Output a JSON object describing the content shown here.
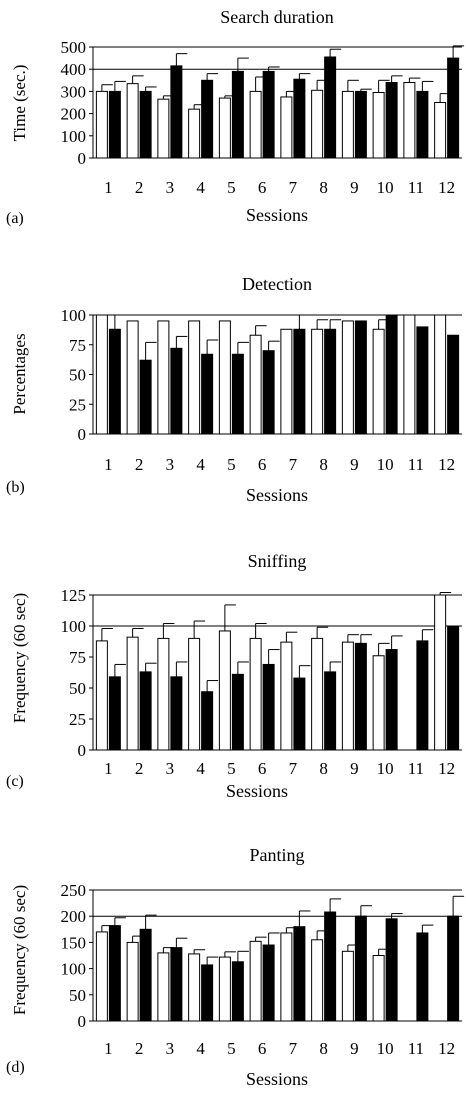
{
  "chart_data": [
    {
      "type": "bar",
      "panel_label": "(a)",
      "title": "Search duration",
      "xlabel": "Sessions",
      "ylabel": "Time (sec.)",
      "ylim": [
        0,
        500
      ],
      "yticks": [
        0,
        100,
        200,
        300,
        400,
        500
      ],
      "gridlines": [
        400,
        500
      ],
      "categories": [
        "1",
        "2",
        "3",
        "4",
        "5",
        "6",
        "7",
        "8",
        "9",
        "10",
        "11",
        "12"
      ],
      "series": [
        {
          "fill": "#ffffff",
          "values": [
            300,
            335,
            265,
            220,
            270,
            300,
            275,
            305,
            300,
            295,
            340,
            250
          ],
          "errors": [
            30,
            35,
            15,
            20,
            10,
            65,
            25,
            45,
            50,
            55,
            20,
            40
          ]
        },
        {
          "fill": "#000000",
          "values": [
            300,
            300,
            415,
            350,
            390,
            390,
            355,
            455,
            300,
            340,
            300,
            450
          ],
          "errors": [
            45,
            20,
            55,
            30,
            60,
            20,
            25,
            35,
            10,
            30,
            45,
            55
          ]
        }
      ]
    },
    {
      "type": "bar",
      "panel_label": "(b)",
      "title": "Detection",
      "xlabel": "Sessions",
      "ylabel": "Percentages",
      "ylim": [
        0,
        100
      ],
      "yticks": [
        0,
        25,
        50,
        75,
        100
      ],
      "gridlines": [
        100
      ],
      "categories": [
        "1",
        "2",
        "3",
        "4",
        "5",
        "6",
        "7",
        "8",
        "9",
        "10",
        "11",
        "12"
      ],
      "series": [
        {
          "fill": "#ffffff",
          "values": [
            100,
            95,
            95,
            95,
            95,
            83,
            88,
            88,
            95,
            88,
            100,
            100
          ],
          "errors": [
            0,
            0,
            0,
            0,
            0,
            8,
            0,
            8,
            0,
            8,
            0,
            0
          ]
        },
        {
          "fill": "#000000",
          "values": [
            88,
            62,
            72,
            67,
            67,
            70,
            88,
            88,
            95,
            100,
            90,
            83
          ],
          "errors": [
            12,
            15,
            10,
            12,
            10,
            8,
            12,
            8,
            0,
            0,
            0,
            0
          ]
        }
      ]
    },
    {
      "type": "bar",
      "panel_label": "(c)",
      "title": "Sniffing",
      "xlabel": "Sessions",
      "ylabel": "Frequency (60 sec)",
      "ylim": [
        0,
        125
      ],
      "yticks": [
        0,
        25,
        50,
        75,
        100,
        125
      ],
      "gridlines": [
        100,
        125
      ],
      "categories": [
        "1",
        "2",
        "3",
        "4",
        "5",
        "6",
        "7",
        "8",
        "9",
        "10",
        "11",
        "12"
      ],
      "series": [
        {
          "fill": "#ffffff",
          "values": [
            88,
            91,
            90,
            90,
            96,
            90,
            87,
            90,
            87,
            76,
            0,
            125
          ],
          "errors": [
            10,
            7,
            12,
            14,
            21,
            12,
            8,
            9,
            6,
            10,
            0,
            2
          ]
        },
        {
          "fill": "#000000",
          "values": [
            59,
            63,
            59,
            47,
            61,
            69,
            58,
            63,
            86,
            81,
            88,
            100
          ],
          "errors": [
            10,
            7,
            12,
            9,
            10,
            12,
            10,
            8,
            7,
            11,
            9,
            0
          ]
        }
      ]
    },
    {
      "type": "bar",
      "panel_label": "(d)",
      "title": "Panting",
      "xlabel": "Sessions",
      "ylabel": "Frequency (60 sec)",
      "ylim": [
        0,
        250
      ],
      "yticks": [
        0,
        50,
        100,
        150,
        200,
        250
      ],
      "gridlines": [
        200,
        250
      ],
      "categories": [
        "1",
        "2",
        "3",
        "4",
        "5",
        "6",
        "7",
        "8",
        "9",
        "10",
        "11",
        "12"
      ],
      "series": [
        {
          "fill": "#ffffff",
          "values": [
            170,
            150,
            130,
            128,
            122,
            152,
            168,
            155,
            133,
            125,
            0,
            0
          ],
          "errors": [
            12,
            12,
            10,
            8,
            10,
            8,
            10,
            17,
            12,
            12,
            0,
            0
          ]
        },
        {
          "fill": "#000000",
          "values": [
            182,
            175,
            140,
            107,
            113,
            145,
            180,
            208,
            200,
            195,
            168,
            200
          ],
          "errors": [
            15,
            27,
            18,
            15,
            20,
            23,
            30,
            25,
            20,
            10,
            15,
            38
          ]
        }
      ]
    }
  ]
}
